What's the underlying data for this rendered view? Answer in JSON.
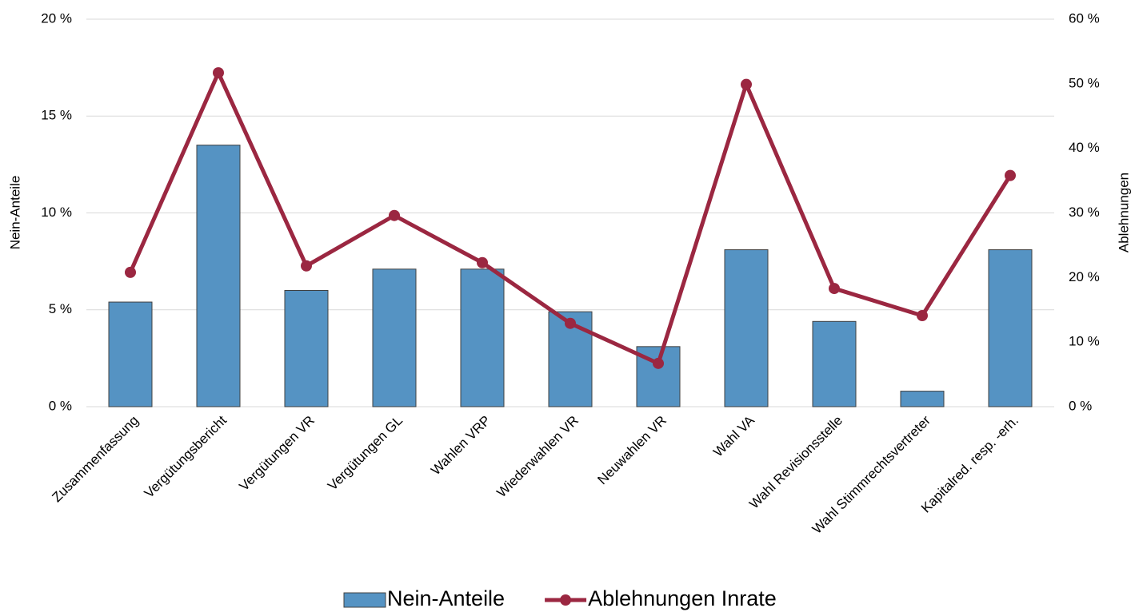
{
  "chart_data": {
    "type": "bar_line",
    "categories": [
      "Zusammenfassung",
      "Vergütungsbericht",
      "Vergütungen VR",
      "Vergütungen GL",
      "Wahlen VRP",
      "Wiederwahlen VR",
      "Neuwahlen VR",
      "Wahl VA",
      "Wahl Revisionsstelle",
      "Wahl Stimmrechtsvertreter",
      "Kapitalred. resp. -erh."
    ],
    "series": [
      {
        "name": "Nein-Anteile",
        "color": "#5593c3",
        "type": "bar",
        "values": [
          5.4,
          13.5,
          6.0,
          7.1,
          7.1,
          4.9,
          3.1,
          8.1,
          4.4,
          0.8,
          8.1
        ]
      },
      {
        "name": "Ablehnungen Inrate",
        "color": "#9b2741",
        "type": "line",
        "axis": "y2",
        "values": [
          20.8,
          51.7,
          21.8,
          29.6,
          22.3,
          12.9,
          6.7,
          49.9,
          18.3,
          14.1,
          35.8
        ]
      }
    ],
    "ylabel": "Nein-Anteile",
    "y2label": "Ablehnungen",
    "ylim": [
      0,
      20
    ],
    "yticks": [
      {
        "value": 0,
        "label": "0 %"
      },
      {
        "value": 5,
        "label": "5 %"
      },
      {
        "value": 10,
        "label": "10 %"
      },
      {
        "value": 15,
        "label": "15 %"
      },
      {
        "value": 20,
        "label": "20 %"
      }
    ],
    "y2lim": [
      0,
      60
    ],
    "y2ticks": [
      {
        "value": 0,
        "label": "0 %"
      },
      {
        "value": 10,
        "label": "10 %"
      },
      {
        "value": 20,
        "label": "20 %"
      },
      {
        "value": 30,
        "label": "30 %"
      },
      {
        "value": 40,
        "label": "40 %"
      },
      {
        "value": 50,
        "label": "50 %"
      },
      {
        "value": 60,
        "label": "60 %"
      }
    ],
    "grid": true,
    "legend": "bottom"
  }
}
